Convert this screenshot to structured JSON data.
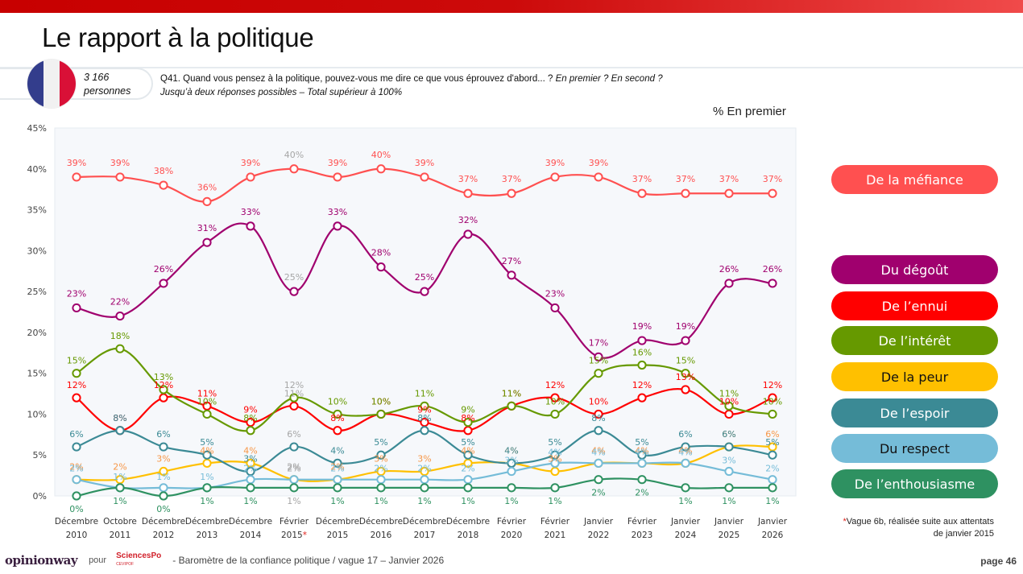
{
  "page": {
    "title": "Le rapport à la politique",
    "sample_count": "3 166",
    "sample_unit": "personnes",
    "question_main": "Q41. Quand vous pensez à la politique, pouvez-vous me dire ce que vous éprouvez d'abord... ?",
    "question_italic": "En premier ? En second ?",
    "question_note": "Jusqu’à deux réponses possibles – Total supérieur à 100%",
    "subtitle": "% En premier",
    "footnote_star": "*",
    "footnote_text": "Vague 6b, réalisée suite aux attentats de janvier 2015",
    "footer": {
      "logo_left": "opinionway",
      "pour": "pour",
      "logo_right": "SciencesPo",
      "logo_right_sub": "CEVIPOF",
      "text": "-  Baromètre de la confiance politique / vague 17 – Janvier 2026",
      "page": "page 46"
    },
    "flag_icon": "france-flag-icon"
  },
  "chart_data": {
    "type": "line",
    "title": "% En premier",
    "xlabel": "",
    "ylabel": "",
    "ylim": [
      0,
      45
    ],
    "yticks": [
      "0%",
      "5%",
      "10%",
      "15%",
      "20%",
      "25%",
      "30%",
      "35%",
      "40%",
      "45%"
    ],
    "grid": false,
    "legend_position": "right",
    "categories": [
      [
        "Décembre",
        "2010"
      ],
      [
        "Octobre",
        "2011"
      ],
      [
        "Décembre",
        "2012"
      ],
      [
        "Décembre",
        "2013"
      ],
      [
        "Décembre",
        "2014"
      ],
      [
        "Février",
        "2015*"
      ],
      [
        "Décembre",
        "2015"
      ],
      [
        "Décembre",
        "2016"
      ],
      [
        "Décembre",
        "2017"
      ],
      [
        "Décembre",
        "2018"
      ],
      [
        "Février",
        "2020"
      ],
      [
        "Février",
        "2021"
      ],
      [
        "Janvier",
        "2022"
      ],
      [
        "Février",
        "2023"
      ],
      [
        "Janvier",
        "2024"
      ],
      [
        "Janvier",
        "2025"
      ],
      [
        "Janvier",
        "2026"
      ]
    ],
    "highlight_index": 5,
    "highlight_label_color": "#a6a6a6",
    "series": [
      {
        "name": "De la méfiance",
        "color": "#ff5050",
        "legend_text_color": "#ffffff",
        "values": [
          39,
          39,
          38,
          36,
          39,
          40,
          39,
          40,
          39,
          37,
          37,
          39,
          39,
          37,
          37,
          37,
          37
        ]
      },
      {
        "name": "Du dégoût",
        "color": "#a0006e",
        "legend_text_color": "#ffffff",
        "values": [
          23,
          22,
          26,
          31,
          33,
          25,
          33,
          28,
          25,
          32,
          27,
          23,
          17,
          19,
          19,
          26,
          26
        ]
      },
      {
        "name": "De l’ennui",
        "color": "#ff0000",
        "legend_text_color": "#ffffff",
        "values": [
          12,
          8,
          12,
          11,
          9,
          11,
          8,
          10,
          9,
          8,
          11,
          12,
          10,
          12,
          13,
          10,
          12
        ]
      },
      {
        "name": "De l’intérêt",
        "color": "#669900",
        "legend_text_color": "#ffffff",
        "values": [
          15,
          18,
          13,
          10,
          8,
          12,
          10,
          10,
          11,
          9,
          11,
          10,
          15,
          16,
          15,
          11,
          10
        ]
      },
      {
        "name": "De la peur",
        "color": "#ffc000",
        "label_color": "#f79646",
        "legend_text_color": "#111111",
        "values": [
          2,
          2,
          3,
          4,
          4,
          2,
          2,
          3,
          3,
          4,
          4,
          3,
          4,
          4,
          4,
          6,
          6
        ]
      },
      {
        "name": "De l’espoir",
        "color": "#3b8a95",
        "legend_text_color": "#ffffff",
        "values": [
          6,
          8,
          6,
          5,
          3,
          6,
          4,
          5,
          8,
          5,
          4,
          5,
          8,
          5,
          6,
          6,
          5
        ]
      },
      {
        "name": "Du respect",
        "color": "#75bcd8",
        "legend_text_color": "#111111",
        "values": [
          2,
          1,
          1,
          1,
          2,
          2,
          2,
          2,
          2,
          2,
          3,
          4,
          4,
          4,
          4,
          3,
          2
        ]
      },
      {
        "name": "De l’enthousiasme",
        "color": "#2e9161",
        "legend_text_color": "#ffffff",
        "values": [
          0,
          1,
          0,
          1,
          1,
          1,
          1,
          1,
          1,
          1,
          1,
          1,
          2,
          2,
          1,
          1,
          1
        ]
      }
    ]
  }
}
